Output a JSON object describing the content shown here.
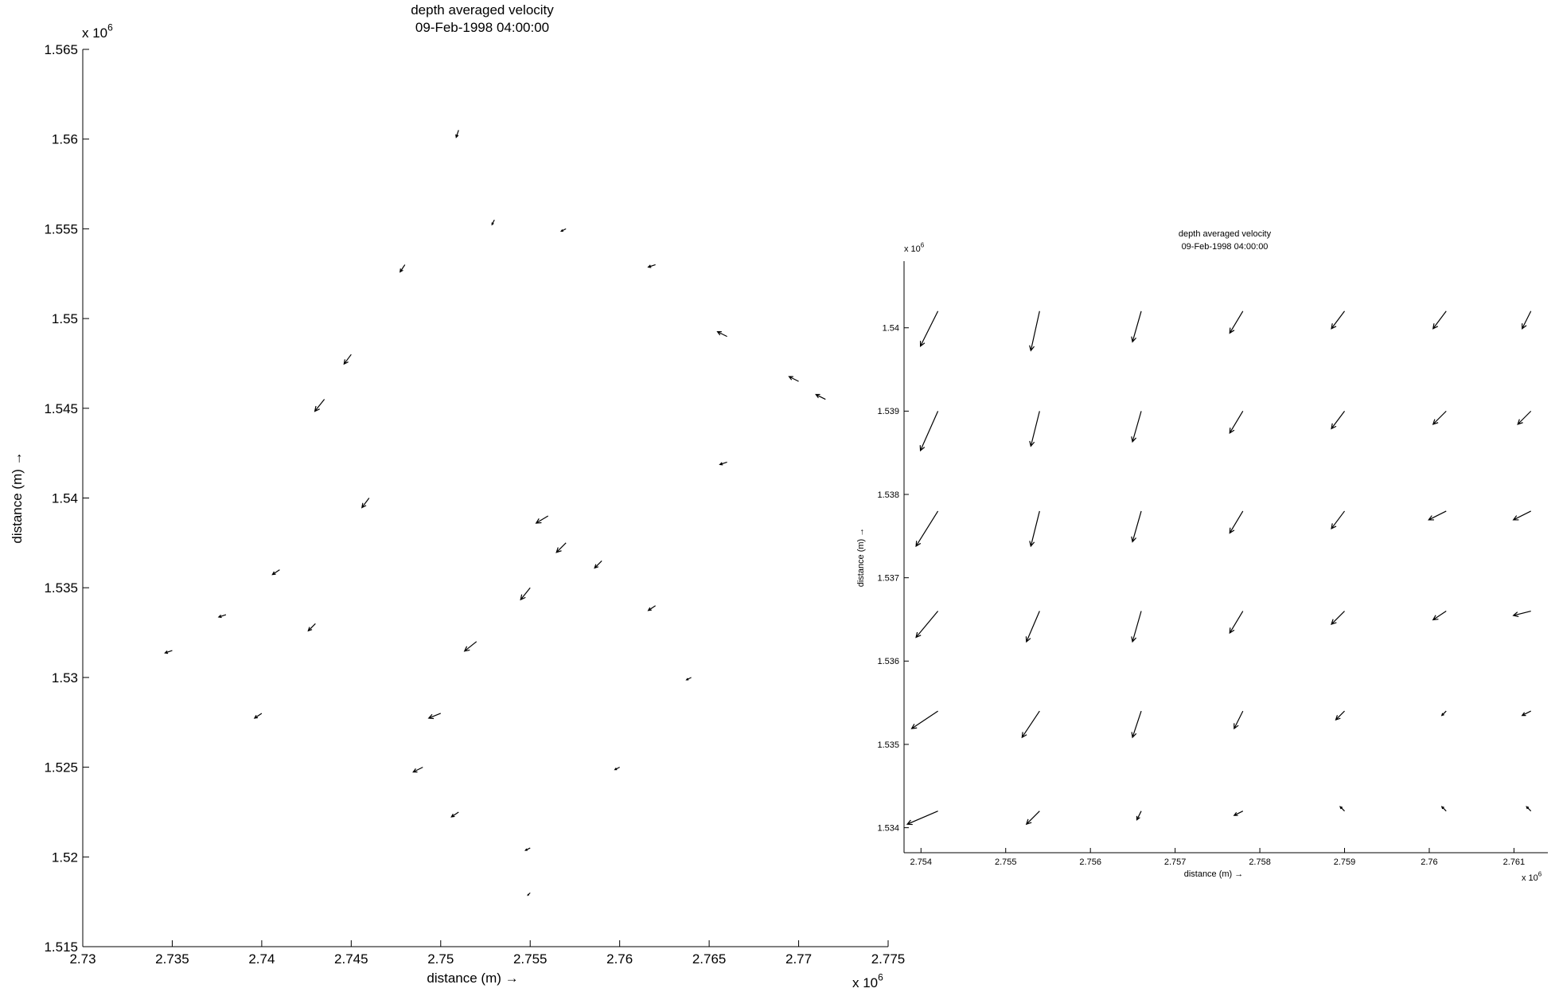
{
  "chart_data": [
    {
      "type": "quiver",
      "title": "depth averaged velocity",
      "subtitle": "09-Feb-1998 04:00:00",
      "x_label": "distance (m) →",
      "y_label": "distance (m) →",
      "x_multiplier": {
        "text": "x 10",
        "power": "6"
      },
      "y_multiplier": {
        "text": "x 10",
        "power": "6"
      },
      "xlim": [
        2.73,
        2.775
      ],
      "ylim": [
        1.515,
        1.565
      ],
      "xticks": [
        2.73,
        2.735,
        2.74,
        2.745,
        2.75,
        2.755,
        2.76,
        2.765,
        2.77,
        2.775
      ],
      "yticks": [
        1.515,
        1.52,
        1.525,
        1.53,
        1.535,
        1.54,
        1.545,
        1.55,
        1.555,
        1.56,
        1.565
      ],
      "series": [
        {
          "color": "#000000",
          "x": [
            2.735,
            2.738,
            2.741,
            2.7435,
            2.745,
            2.748,
            2.751,
            2.753,
            2.757,
            2.762,
            2.766,
            2.77,
            2.7715,
            2.756,
            2.757,
            2.759,
            2.755,
            2.752,
            2.75,
            2.749,
            2.751,
            2.755,
            2.755,
            2.76,
            2.764,
            2.762,
            2.746,
            2.743,
            2.74,
            2.766
          ],
          "y": [
            1.5315,
            1.5335,
            1.536,
            1.5455,
            1.548,
            1.553,
            1.5605,
            1.5555,
            1.555,
            1.553,
            1.549,
            1.5465,
            1.5455,
            1.539,
            1.5375,
            1.5365,
            1.535,
            1.532,
            1.528,
            1.525,
            1.5225,
            1.5205,
            1.518,
            1.525,
            1.53,
            1.534,
            1.54,
            1.533,
            1.528,
            1.542
          ],
          "u": [
            -0.3,
            -0.3,
            -0.3,
            -0.4,
            -0.3,
            -0.2,
            -0.1,
            -0.1,
            -0.2,
            -0.3,
            -0.4,
            -0.4,
            -0.4,
            -0.5,
            -0.4,
            -0.3,
            -0.4,
            -0.5,
            -0.5,
            -0.4,
            -0.3,
            -0.2,
            -0.1,
            -0.2,
            -0.2,
            -0.3,
            -0.3,
            -0.3,
            -0.3,
            -0.3
          ],
          "v": [
            -0.1,
            -0.1,
            -0.2,
            -0.5,
            -0.4,
            -0.3,
            -0.3,
            -0.2,
            -0.1,
            -0.1,
            0.2,
            0.2,
            0.2,
            -0.3,
            -0.4,
            -0.3,
            -0.5,
            -0.4,
            -0.2,
            -0.2,
            -0.2,
            -0.1,
            -0.1,
            -0.1,
            -0.1,
            -0.2,
            -0.4,
            -0.3,
            -0.2,
            -0.1
          ]
        }
      ]
    },
    {
      "type": "quiver",
      "title": "depth averaged velocity",
      "subtitle": "09-Feb-1998 04:00:00",
      "x_label": "distance (m) →",
      "y_label": "distance (m) →",
      "x_multiplier": {
        "text": "x 10",
        "power": "6"
      },
      "y_multiplier": {
        "text": "x 10",
        "power": "6"
      },
      "xlim": [
        2.7538,
        2.7614
      ],
      "ylim": [
        1.5337,
        1.5408
      ],
      "xticks": [
        2.754,
        2.755,
        2.756,
        2.757,
        2.758,
        2.759,
        2.76,
        2.761
      ],
      "yticks": [
        1.534,
        1.535,
        1.536,
        1.537,
        1.538,
        1.539,
        1.54
      ],
      "series": [
        {
          "color": "#000000",
          "x": [
            2.7542,
            2.7554,
            2.7566,
            2.7578,
            2.759,
            2.7602,
            2.7612,
            2.7542,
            2.7554,
            2.7566,
            2.7578,
            2.759,
            2.7602,
            2.7612,
            2.7542,
            2.7554,
            2.7566,
            2.7578,
            2.759,
            2.7602,
            2.7612,
            2.7542,
            2.7554,
            2.7566,
            2.7578,
            2.759,
            2.7602,
            2.7612,
            2.7542,
            2.7554,
            2.7566,
            2.7578,
            2.759,
            2.7602,
            2.7612,
            2.7542,
            2.7554,
            2.7566,
            2.7578,
            2.759,
            2.7602,
            2.7612
          ],
          "y": [
            1.5402,
            1.5402,
            1.5402,
            1.5402,
            1.5402,
            1.5402,
            1.5402,
            1.539,
            1.539,
            1.539,
            1.539,
            1.539,
            1.539,
            1.539,
            1.5378,
            1.5378,
            1.5378,
            1.5378,
            1.5378,
            1.5378,
            1.5378,
            1.5366,
            1.5366,
            1.5366,
            1.5366,
            1.5366,
            1.5366,
            1.5366,
            1.5354,
            1.5354,
            1.5354,
            1.5354,
            1.5354,
            1.5354,
            1.5354,
            1.5342,
            1.5342,
            1.5342,
            1.5342,
            1.5342,
            1.5342,
            1.5342
          ],
          "u": [
            -0.4,
            -0.2,
            -0.2,
            -0.3,
            -0.3,
            -0.3,
            -0.2,
            -0.4,
            -0.2,
            -0.2,
            -0.3,
            -0.3,
            -0.3,
            -0.3,
            -0.5,
            -0.2,
            -0.2,
            -0.3,
            -0.3,
            -0.4,
            -0.4,
            -0.5,
            -0.3,
            -0.2,
            -0.3,
            -0.3,
            -0.3,
            -0.4,
            -0.6,
            -0.4,
            -0.2,
            -0.2,
            -0.2,
            -0.1,
            -0.2,
            -0.7,
            -0.3,
            -0.1,
            -0.2,
            -0.1,
            -0.1,
            -0.1
          ],
          "v": [
            -0.8,
            -0.9,
            -0.7,
            -0.5,
            -0.4,
            -0.4,
            -0.4,
            -0.9,
            -0.8,
            -0.7,
            -0.5,
            -0.4,
            -0.3,
            -0.3,
            -0.8,
            -0.8,
            -0.7,
            -0.5,
            -0.4,
            -0.2,
            -0.2,
            -0.6,
            -0.7,
            -0.7,
            -0.5,
            -0.3,
            -0.2,
            -0.1,
            -0.4,
            -0.6,
            -0.6,
            -0.4,
            -0.2,
            -0.1,
            -0.1,
            -0.3,
            -0.3,
            -0.2,
            -0.1,
            0.1,
            0.1,
            0.1
          ]
        }
      ]
    }
  ]
}
